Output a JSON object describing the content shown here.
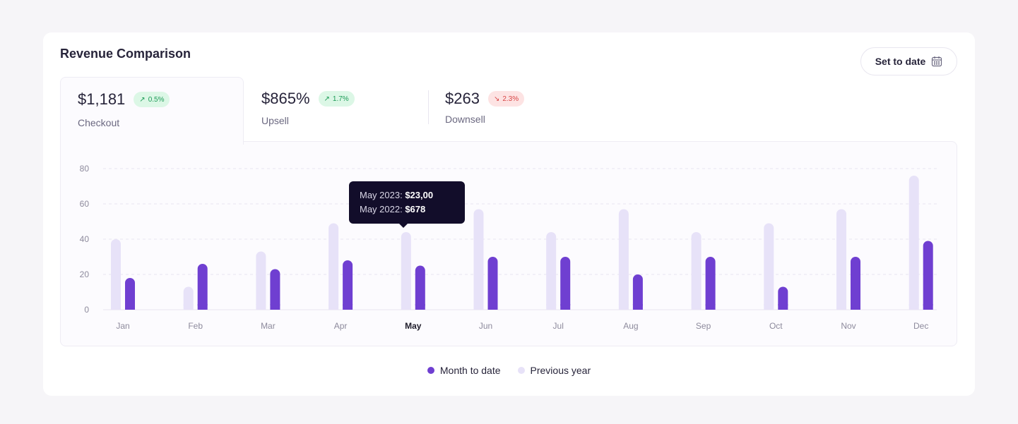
{
  "card": {
    "title": "Revenue Comparison"
  },
  "date_button": {
    "label": "Set to date",
    "icon": "calendar-icon"
  },
  "tabs": [
    {
      "value": "$1,181",
      "change": "0.5%",
      "direction": "up",
      "label": "Checkout",
      "active": true
    },
    {
      "value": "$865%",
      "change": "1.7%",
      "direction": "up",
      "label": "Upsell",
      "active": false
    },
    {
      "value": "$263",
      "change": "2.3%",
      "direction": "down",
      "label": "Downsell",
      "active": false
    }
  ],
  "tooltip": {
    "line1_label": "May 2023:",
    "line1_value": "$23,00",
    "line2_label": "May 2022:",
    "line2_value": "$678"
  },
  "colors": {
    "month_to_date": "#6f3fd1",
    "previous_year": "#e7e2f8",
    "grid": "#e9e6f0",
    "axis_text": "#8d8a9c"
  },
  "chart_data": {
    "type": "bar",
    "categories": [
      "Jan",
      "Feb",
      "Mar",
      "Apr",
      "May",
      "Jun",
      "Jul",
      "Aug",
      "Sep",
      "Oct",
      "Nov",
      "Dec"
    ],
    "highlighted_category": "May",
    "series": [
      {
        "name": "Previous year",
        "values": [
          40,
          13,
          33,
          49,
          44,
          57,
          44,
          57,
          44,
          49,
          57,
          76
        ]
      },
      {
        "name": "Month to date",
        "values": [
          18,
          26,
          23,
          28,
          25,
          30,
          30,
          20,
          30,
          13,
          30,
          39
        ]
      }
    ],
    "yticks": [
      0,
      20,
      40,
      60,
      80
    ],
    "ylim": [
      0,
      80
    ],
    "grid": true,
    "legend": [
      "Month to date",
      "Previous year"
    ],
    "legend_position": "bottom-center"
  }
}
